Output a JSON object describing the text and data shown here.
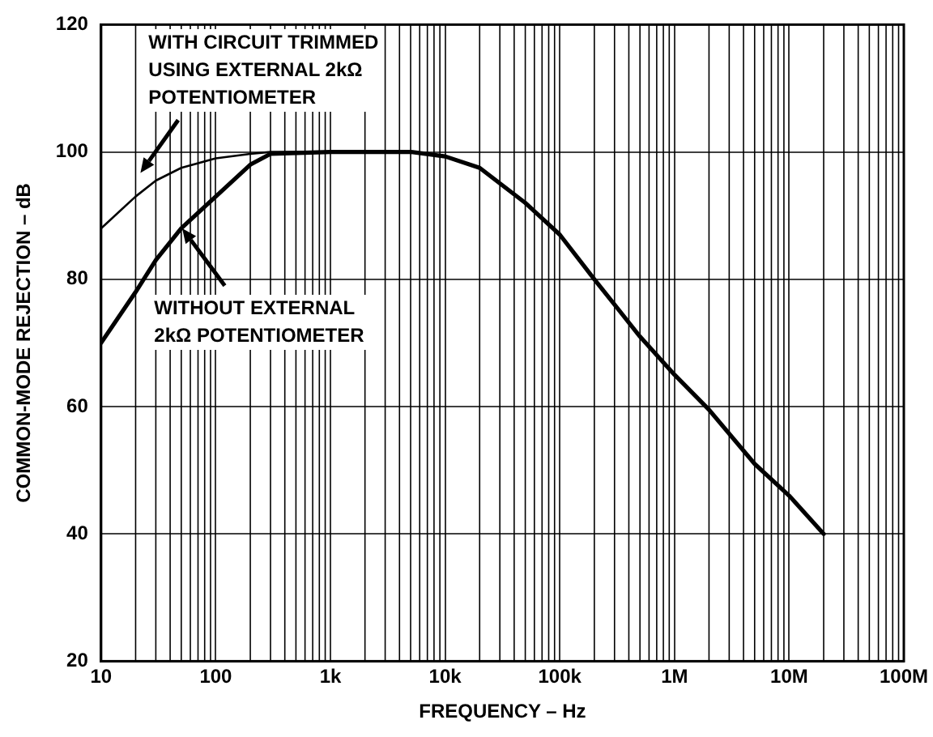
{
  "chart_data": {
    "type": "line",
    "xlabel": "FREQUENCY – Hz",
    "ylabel": "COMMON-MODE REJECTION – dB",
    "log": "x",
    "xlim": [
      10,
      100000000
    ],
    "ylim": [
      20,
      120
    ],
    "xticks": [
      10,
      100,
      {
        "value": 1000,
        "label": "1k"
      },
      {
        "value": 10000,
        "label": "10k"
      },
      {
        "value": 100000,
        "label": "100k"
      },
      {
        "value": 1000000,
        "label": "1M"
      },
      {
        "value": 10000000,
        "label": "10M"
      },
      {
        "value": 100000000,
        "label": "100M"
      }
    ],
    "yticks": [
      20,
      40,
      60,
      80,
      100,
      120
    ],
    "grid": true,
    "legend": false,
    "marker": "none",
    "line_style": "solid",
    "series": [
      {
        "color": "#000000",
        "x": [
          10,
          20,
          30,
          50,
          100,
          200,
          300,
          1000
        ],
        "values": [
          88,
          93,
          95.5,
          97.5,
          99,
          99.7,
          100,
          100
        ]
      },
      {
        "color": "#000000",
        "x": [
          10,
          20,
          30,
          50,
          100,
          200,
          300,
          1000,
          5000,
          10000,
          20000,
          50000,
          100000,
          200000,
          500000,
          1000000,
          2000000,
          5000000,
          10000000,
          20000000
        ],
        "values": [
          70,
          78,
          83,
          88,
          93,
          98,
          99.7,
          100,
          100,
          99.3,
          97.5,
          92,
          87,
          80,
          71,
          65,
          59.5,
          51,
          46,
          40
        ]
      }
    ],
    "annotations": [
      "WITH CIRCUIT TRIMMED\nUSING EXTERNAL 2kΩ\nPOTENTIOMETER",
      "WITHOUT EXTERNAL\n2kΩ POTENTIOMETER"
    ]
  }
}
